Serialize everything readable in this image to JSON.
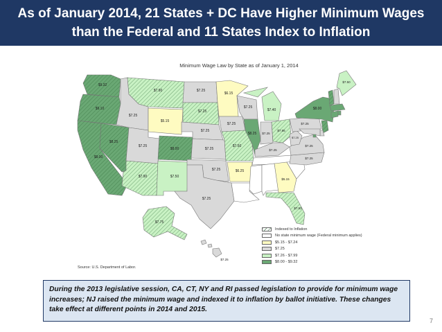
{
  "title": {
    "line1": "As of January 2014, 21 States + DC Have Higher Minimum Wages",
    "line2": "than the Federal and 11 States Index to Inflation"
  },
  "map": {
    "title": "Minimum Wage Law by State as of January 1, 2014",
    "source": "Source: U.S. Department of Labor.",
    "colors": {
      "dark_green": "#6aa874",
      "light_green": "#c9f2c4",
      "gray": "#d9d9d9",
      "yellow": "#fefbc1",
      "white": "#ffffff",
      "border": "#777777"
    },
    "legend": [
      {
        "label": "Indexed to Inflation",
        "fill": "hatch"
      },
      {
        "label": "No state minimum wage (Federal minimum applies)",
        "fill": "#ffffff"
      },
      {
        "label": "$5.15 - $7.24",
        "fill": "#fefbc1"
      },
      {
        "label": "$7.25",
        "fill": "#d9d9d9"
      },
      {
        "label": "$7.26 - $7.99",
        "fill": "#c9f2c4"
      },
      {
        "label": "$8.00 - $9.32",
        "fill": "#6aa874"
      }
    ],
    "state_labels": {
      "wa": "$9.32",
      "or": "$9.10",
      "ca": "$8.00",
      "nv": "$8.25",
      "mt": "$7.90",
      "id": "$7.25",
      "wy": "$5.15",
      "ut": "$7.25",
      "az": "$7.90",
      "co": "$8.00",
      "nm": "$7.50",
      "nd": "$7.25",
      "sd": "$7.25",
      "ne": "$7.25",
      "ks": "$7.25",
      "ok": "$7.25",
      "tx": "$7.25",
      "mn": "$6.15",
      "ia": "$7.25",
      "mo": "$7.50",
      "ar": "$6.25",
      "wi": "$7.25",
      "il": "$8.25",
      "mi": "$7.40",
      "in": "$7.25",
      "oh": "$7.95",
      "ky": "$7.25",
      "pa": "$7.25",
      "wv": "$7.25",
      "va": "$7.25",
      "nc": "$7.25",
      "ga": "$5.15",
      "fl": "$7.93",
      "ny": "$8.00",
      "me": "$7.50",
      "ak": "$7.75",
      "hi": "$7.25"
    }
  },
  "note": "During the 2013 legislative session, CA, CT, NY and RI passed legislation to provide for minimum wage increases; NJ raised the minimum wage and indexed it to inflation by ballot initiative. These changes take effect at different points in 2014 and 2015.",
  "page_number": "7"
}
